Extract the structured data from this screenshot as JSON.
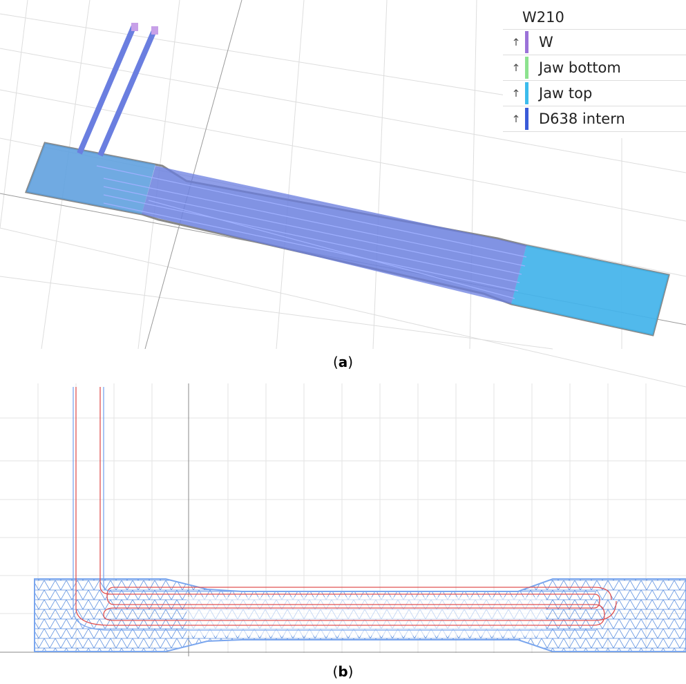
{
  "legend": {
    "title": "W210",
    "items": [
      {
        "label": "W",
        "color": "#9b72d8"
      },
      {
        "label": "Jaw bottom",
        "color": "#8de28f"
      },
      {
        "label": "Jaw top",
        "color": "#3cbcec"
      },
      {
        "label": "D638 intern",
        "color": "#3a5bd8"
      }
    ]
  },
  "captions": [
    {
      "prefix": "(",
      "letter": "a",
      "suffix": ")"
    },
    {
      "prefix": "(",
      "letter": "b",
      "suffix": ")"
    }
  ]
}
